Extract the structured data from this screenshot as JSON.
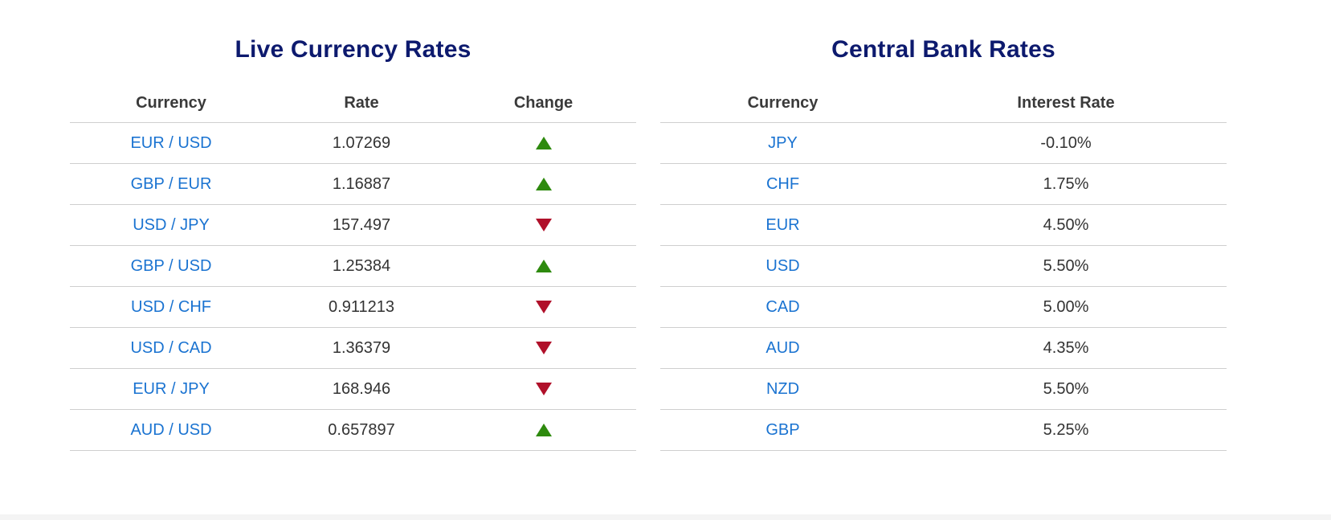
{
  "live_rates": {
    "title": "Live Currency Rates",
    "headers": {
      "currency": "Currency",
      "rate": "Rate",
      "change": "Change"
    },
    "rows": [
      {
        "pair": "EUR / USD",
        "rate": "1.07269",
        "change": "up"
      },
      {
        "pair": "GBP / EUR",
        "rate": "1.16887",
        "change": "up"
      },
      {
        "pair": "USD / JPY",
        "rate": "157.497",
        "change": "down"
      },
      {
        "pair": "GBP / USD",
        "rate": "1.25384",
        "change": "up"
      },
      {
        "pair": "USD / CHF",
        "rate": "0.911213",
        "change": "down"
      },
      {
        "pair": "USD / CAD",
        "rate": "1.36379",
        "change": "down"
      },
      {
        "pair": "EUR / JPY",
        "rate": "168.946",
        "change": "down"
      },
      {
        "pair": "AUD / USD",
        "rate": "0.657897",
        "change": "up"
      }
    ]
  },
  "central_bank": {
    "title": "Central Bank Rates",
    "headers": {
      "currency": "Currency",
      "interest_rate": "Interest Rate"
    },
    "rows": [
      {
        "currency": "JPY",
        "rate": "-0.10%"
      },
      {
        "currency": "CHF",
        "rate": "1.75%"
      },
      {
        "currency": "EUR",
        "rate": "4.50%"
      },
      {
        "currency": "USD",
        "rate": "5.50%"
      },
      {
        "currency": "CAD",
        "rate": "5.00%"
      },
      {
        "currency": "AUD",
        "rate": "4.35%"
      },
      {
        "currency": "NZD",
        "rate": "5.50%"
      },
      {
        "currency": "GBP",
        "rate": "5.25%"
      }
    ]
  },
  "colors": {
    "title": "#0d1a6e",
    "link": "#1a73d1",
    "up": "#2e8a0e",
    "down": "#b0102a",
    "divider": "#cfcfcf"
  },
  "icons": {
    "up": "triangle-up-icon",
    "down": "triangle-down-icon"
  }
}
